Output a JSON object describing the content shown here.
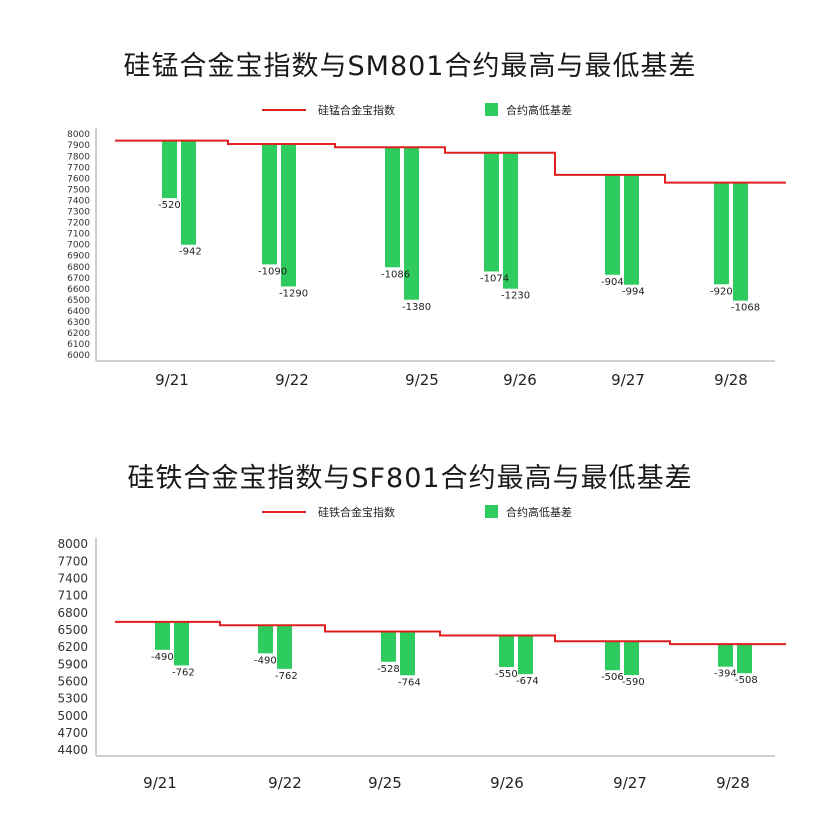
{
  "chart_data": [
    {
      "type": "bar",
      "title": "硅锰合金宝指数与SM801合约最高与最低基差",
      "legend": [
        "硅锰合金宝指数",
        "合约高低基差"
      ],
      "colors": {
        "line": "#e02020",
        "bar": "#2ecc5f"
      },
      "ylim": [
        6000,
        8000
      ],
      "ytick_step": 100,
      "x_labels": [
        "9/21",
        "9/22",
        "9/25",
        "9/26",
        "9/27",
        "9/28"
      ],
      "index": [
        7940,
        7910,
        7880,
        7830,
        7630,
        7560
      ],
      "basis_low": [
        520,
        1090,
        1086,
        1074,
        904,
        920
      ],
      "basis_high": [
        942,
        1290,
        1380,
        1230,
        994,
        1068
      ]
    },
    {
      "type": "bar",
      "title": "硅铁合金宝指数与SF801合约最高与最低基差",
      "legend": [
        "硅铁合金宝指数",
        "合约高低基差"
      ],
      "colors": {
        "line": "#e02020",
        "bar": "#2ecc5f"
      },
      "ylim": [
        4400,
        8000
      ],
      "ytick_step": 300,
      "x_labels": [
        "9/21",
        "9/22",
        "9/25",
        "9/26",
        "9/27",
        "9/28"
      ],
      "index": [
        6640,
        6580,
        6470,
        6400,
        6300,
        6250
      ],
      "basis_low": [
        490,
        490,
        528,
        550,
        506,
        394
      ],
      "basis_high": [
        762,
        762,
        764,
        674,
        590,
        508
      ]
    }
  ]
}
